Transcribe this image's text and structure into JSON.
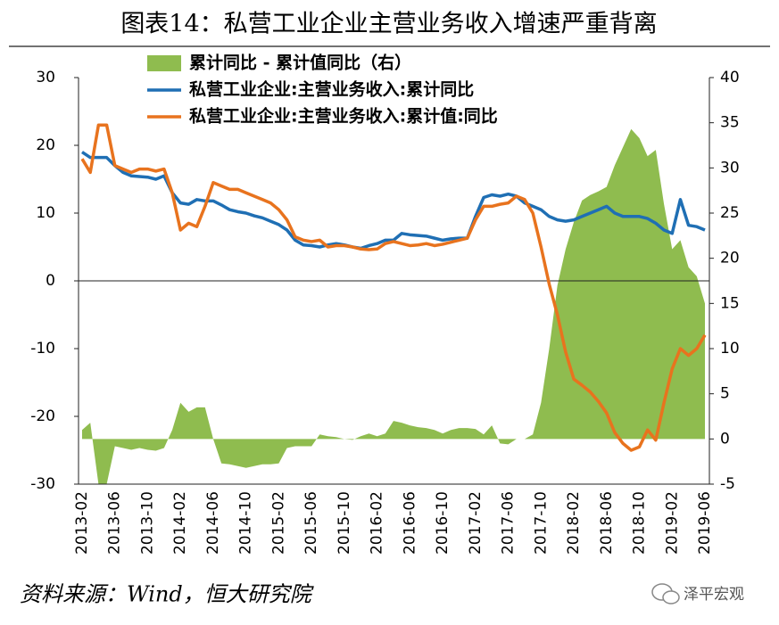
{
  "chart_data": {
    "type": "combo",
    "title": "图表14：私营工业企业主营业务收入增速严重背离",
    "source": "资料来源：Wind，恒大研究院",
    "watermark": "泽平宏观",
    "categories": [
      "2013-02",
      null,
      null,
      null,
      "2013-06",
      null,
      null,
      null,
      "2013-10",
      null,
      null,
      null,
      "2014-02",
      null,
      null,
      null,
      "2014-06",
      null,
      null,
      null,
      "2014-10",
      null,
      null,
      null,
      "2015-02",
      null,
      null,
      null,
      "2015-06",
      null,
      null,
      null,
      "2015-10",
      null,
      null,
      null,
      "2016-02",
      null,
      null,
      null,
      "2016-06",
      null,
      null,
      null,
      "2016-10",
      null,
      null,
      null,
      "2017-02",
      null,
      null,
      null,
      "2017-06",
      null,
      null,
      null,
      "2017-10",
      null,
      null,
      null,
      "2018-02",
      null,
      null,
      null,
      "2018-06",
      null,
      null,
      null,
      "2018-10",
      null,
      null,
      null,
      "2019-02",
      null,
      null,
      null,
      "2019-06"
    ],
    "series": [
      {
        "name": "累计同比 - 累计值同比（右）",
        "kind": "area",
        "axis": "y2",
        "color": "#8fbc4f",
        "values": [
          1,
          1.8,
          -5,
          -5,
          -0.8,
          -1,
          -1.2,
          -1,
          -1.2,
          -1.3,
          -1,
          1,
          4,
          3,
          3.5,
          3.5,
          0,
          -2.7,
          -2.8,
          -3,
          -3.2,
          -3,
          -2.8,
          -2.8,
          -2.7,
          -1,
          -0.8,
          -0.8,
          -0.8,
          0.5,
          0.3,
          0.2,
          0,
          -0.1,
          0.3,
          0.6,
          0.3,
          0.6,
          2,
          1.8,
          1.5,
          1.3,
          1.2,
          1,
          0.6,
          1,
          1.2,
          1.2,
          1.1,
          0.5,
          1.5,
          -0.5,
          -0.6,
          0,
          0,
          0.5,
          4,
          10,
          17,
          21,
          24,
          26.4,
          27,
          27.4,
          27.9,
          30.3,
          32.3,
          34.3,
          33.3,
          31.3,
          32,
          26,
          21,
          22,
          19,
          18,
          15
        ]
      },
      {
        "name": "私营工业企业:主营业务收入:累计同比",
        "kind": "line",
        "color": "#1f6fb4",
        "values": [
          19,
          18.2,
          18.2,
          18.2,
          17,
          16,
          15.5,
          15.4,
          15.3,
          15,
          15.5,
          13,
          11.5,
          11.3,
          12,
          11.8,
          11.8,
          11.2,
          10.5,
          10.2,
          10,
          9.6,
          9.3,
          8.8,
          8.3,
          7.5,
          6,
          5.3,
          5.2,
          5,
          5.3,
          5.5,
          5.3,
          5,
          4.8,
          5.2,
          5.5,
          6,
          6,
          7,
          6.8,
          6.7,
          6.6,
          6.3,
          6,
          6.2,
          6.3,
          6.3,
          9.5,
          12.3,
          12.7,
          12.5,
          12.8,
          12.5,
          11.5,
          11,
          10.5,
          9.5,
          9,
          8.8,
          9,
          9.5,
          10,
          10.5,
          11,
          10,
          9.5,
          9.5,
          9.5,
          9.2,
          8.5,
          7.5,
          7,
          12,
          8.2,
          8,
          7.5
        ]
      },
      {
        "name": "私营工业企业:主营业务收入:累计值:同比",
        "kind": "line",
        "color": "#e8731e",
        "values": [
          18,
          16,
          23,
          23,
          17,
          16.5,
          16,
          16.5,
          16.5,
          16.2,
          16.5,
          13,
          7.5,
          8.5,
          8,
          11,
          14.5,
          14,
          13.5,
          13.5,
          13,
          12.5,
          12,
          11.5,
          10.5,
          9,
          6.5,
          6,
          5.8,
          6,
          5,
          5.2,
          5.2,
          5,
          4.7,
          4.6,
          4.7,
          5.5,
          5.8,
          5.5,
          5.2,
          5.3,
          5.5,
          5.2,
          5.4,
          5.7,
          6,
          6.3,
          9,
          11,
          11,
          11.3,
          11.5,
          12.5,
          12,
          10,
          5,
          -0.5,
          -5,
          -10.5,
          -14.5,
          -15.4,
          -16.4,
          -17.8,
          -19.5,
          -22.4,
          -24,
          -25,
          -24.5,
          -22,
          -23.5,
          -18,
          -13,
          -10,
          -11,
          -10,
          -8
        ]
      }
    ],
    "ylim": [
      -30,
      30
    ],
    "yticks": [
      -30,
      -20,
      -10,
      0,
      10,
      20,
      30
    ],
    "y2lim": [
      -5,
      40
    ],
    "y2ticks": [
      -5,
      0,
      5,
      10,
      15,
      20,
      25,
      30,
      35,
      40
    ]
  }
}
